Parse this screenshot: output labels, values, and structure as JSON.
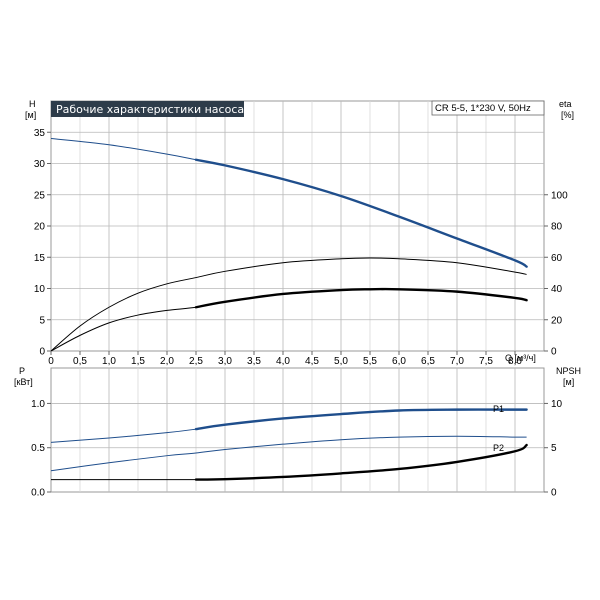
{
  "chart_data": [
    {
      "type": "line",
      "title": "Рабочие характеристики насоса",
      "subtitle": "CR 5-5, 1*230 V, 50Hz",
      "xlabel": "Q [м³/ч]",
      "ylabel_left": "H",
      "ylabel_left_unit": "[м]",
      "ylabel_right": "eta",
      "ylabel_right_unit": "[%]",
      "xlim": [
        0,
        8.5
      ],
      "ylim_left": [
        0,
        40
      ],
      "ylim_right": [
        0,
        160
      ],
      "x_ticks": [
        "0",
        "0,5",
        "1,0",
        "1,5",
        "2,0",
        "2,5",
        "3,0",
        "3,5",
        "4,0",
        "4,5",
        "5,0",
        "5,5",
        "6,0",
        "6,5",
        "7,0",
        "7,5",
        "8,0"
      ],
      "y_left_ticks": [
        "0",
        "5",
        "10",
        "15",
        "20",
        "25",
        "30",
        "35"
      ],
      "y_right_ticks": [
        "0",
        "20",
        "40",
        "60",
        "80",
        "100"
      ],
      "grid": true,
      "series": [
        {
          "axis": "left",
          "color": "#1f4e8c",
          "x": [
            0,
            1,
            2,
            2.5,
            3,
            4,
            5,
            6,
            7,
            8,
            8.2
          ],
          "y": [
            34,
            33,
            31.5,
            30.6,
            29.7,
            27.5,
            24.8,
            21.5,
            18,
            14.5,
            13.5
          ],
          "highlight_from": 2.5
        },
        {
          "axis": "right",
          "color": "#000000",
          "x": [
            0,
            0.5,
            1,
            1.5,
            2,
            2.5,
            3,
            4,
            5,
            5.5,
            6,
            7,
            8,
            8.2
          ],
          "y": [
            0,
            16,
            28,
            37,
            43,
            47,
            51,
            56.5,
            59,
            59.5,
            59,
            56.5,
            50.5,
            49
          ],
          "highlight_from": null
        },
        {
          "axis": "right",
          "color": "#000000",
          "x": [
            0,
            0.5,
            1,
            1.5,
            2,
            2.5,
            3,
            4,
            5,
            5.5,
            6,
            7,
            8,
            8.2
          ],
          "y": [
            0,
            10,
            18,
            23,
            26,
            28,
            31.5,
            36.5,
            39,
            39.5,
            39.5,
            38,
            34,
            32.5
          ],
          "highlight_from": 2.5
        }
      ]
    },
    {
      "type": "line",
      "ylabel_left": "P",
      "ylabel_left_unit": "[кВт]",
      "ylabel_right": "NPSH",
      "ylabel_right_unit": "[м]",
      "xlim": [
        0,
        8.5
      ],
      "ylim_left": [
        0,
        1.4
      ],
      "ylim_right": [
        0,
        14
      ],
      "y_left_ticks": [
        "0.0",
        "0.5",
        "1.0"
      ],
      "y_right_ticks": [
        "0",
        "5",
        "10"
      ],
      "grid": true,
      "series": [
        {
          "name": "P1",
          "axis": "left",
          "color": "#1f4e8c",
          "x": [
            0,
            1,
            2,
            2.5,
            3,
            4,
            5,
            6,
            7,
            8,
            8.2
          ],
          "y": [
            0.56,
            0.61,
            0.67,
            0.71,
            0.76,
            0.83,
            0.88,
            0.92,
            0.93,
            0.93,
            0.93
          ],
          "highlight_from": 2.5
        },
        {
          "name": "P2",
          "axis": "left",
          "color": "#1f4e8c",
          "x": [
            0,
            1,
            2,
            2.5,
            3,
            4,
            5,
            6,
            7,
            8,
            8.2
          ],
          "y": [
            0.24,
            0.33,
            0.41,
            0.44,
            0.48,
            0.54,
            0.59,
            0.62,
            0.63,
            0.62,
            0.62
          ],
          "highlight_from": null
        },
        {
          "axis": "right",
          "color": "#000000",
          "x": [
            0,
            0.5,
            1,
            2,
            2.5,
            3,
            4,
            5,
            6,
            7,
            8,
            8.2
          ],
          "y": [
            1.4,
            1.4,
            1.4,
            1.4,
            1.4,
            1.45,
            1.7,
            2.1,
            2.6,
            3.4,
            4.6,
            5.3
          ],
          "highlight_from": 2.5
        }
      ]
    }
  ]
}
